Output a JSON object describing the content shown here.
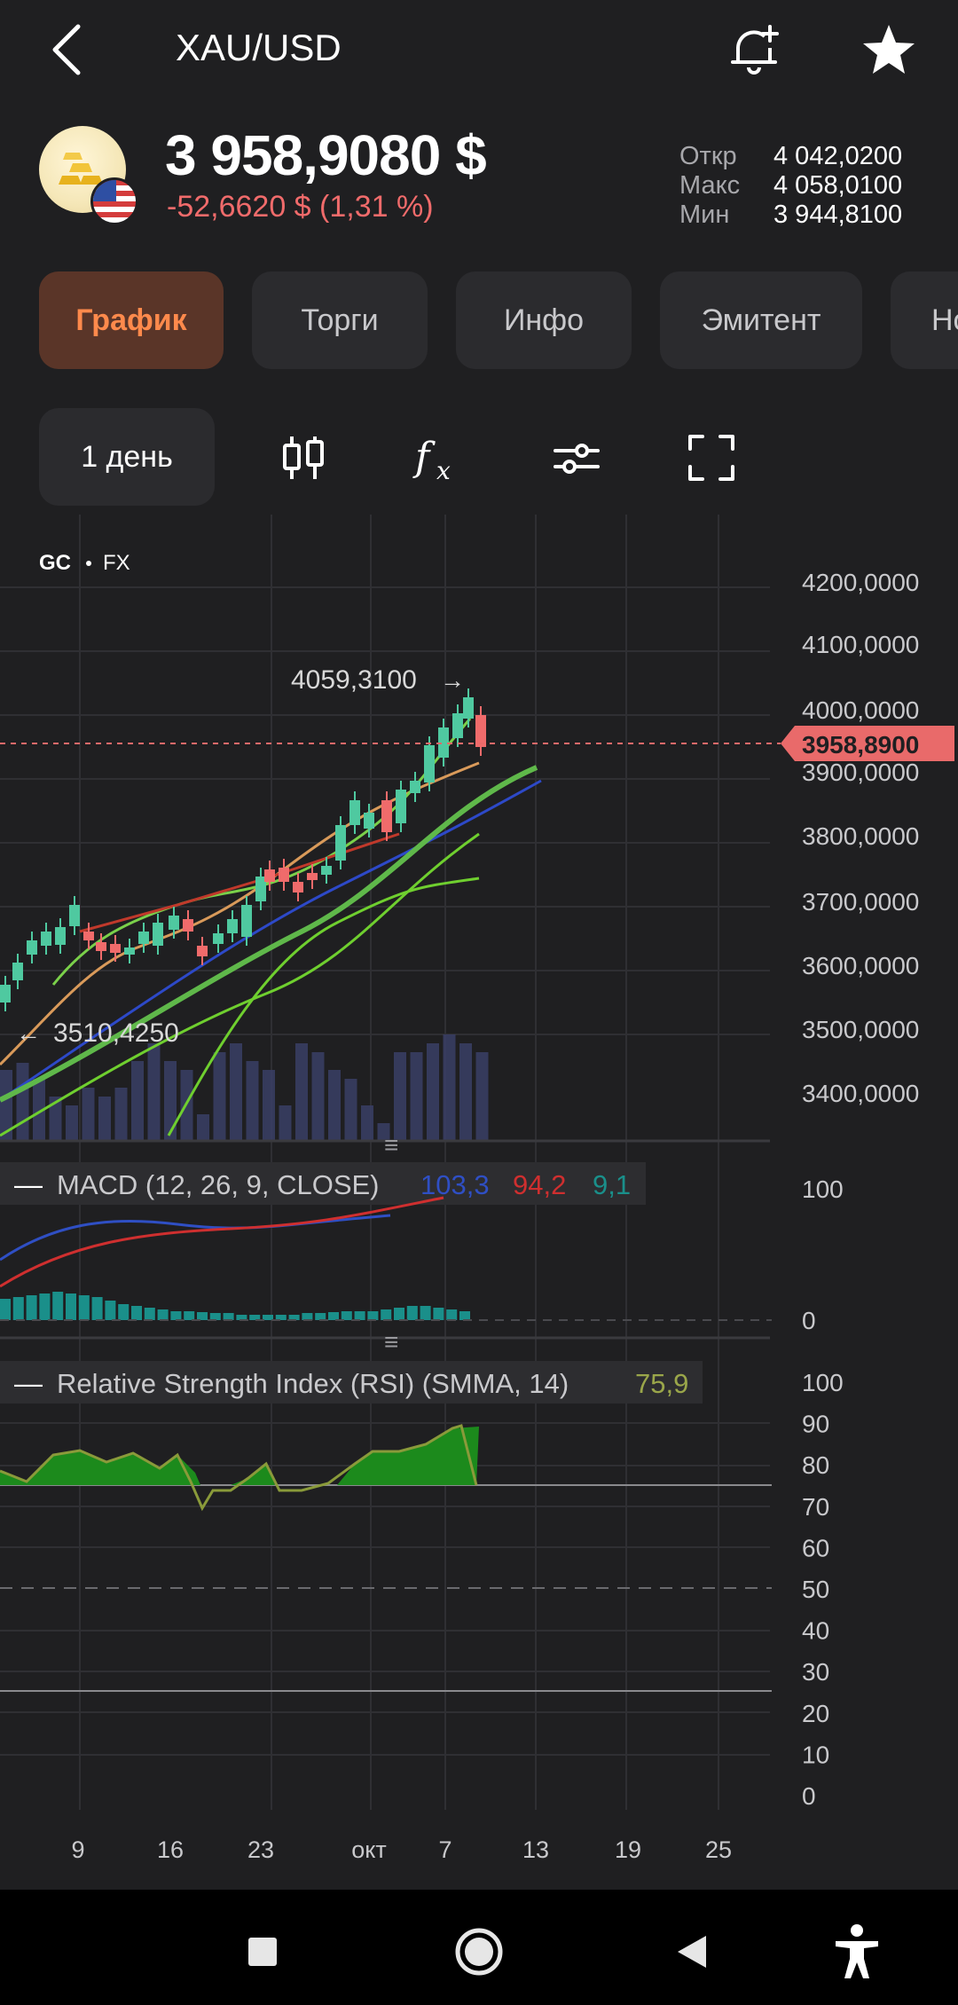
{
  "header": {
    "title": "XAU/USD",
    "icons": {
      "back": "back-arrow-icon",
      "alert": "bell-plus-icon",
      "favorite": "star-icon"
    }
  },
  "quote": {
    "price": "3 958,9080 $",
    "change": "-52,6620 $ (1,31 %)",
    "stats": [
      {
        "label": "Откр",
        "value": "4 042,0200"
      },
      {
        "label": "Макс",
        "value": "4 058,0100"
      },
      {
        "label": "Мин",
        "value": "3 944,8100"
      }
    ]
  },
  "tabs": [
    {
      "label": "График",
      "active": true
    },
    {
      "label": "Торги",
      "active": false
    },
    {
      "label": "Инфо",
      "active": false
    },
    {
      "label": "Эмитент",
      "active": false
    },
    {
      "label": "Но",
      "active": false
    }
  ],
  "toolbar": {
    "period": "1 день",
    "icons": [
      "candle-type-icon",
      "indicators-fx-icon",
      "settings-sliders-icon",
      "fullscreen-icon"
    ]
  },
  "chart": {
    "symbol": "GC",
    "source": "FX",
    "y_axis_labels": [
      "4200,0000",
      "4100,0000",
      "4000,0000",
      "3900,0000",
      "3800,0000",
      "3700,0000",
      "3600,0000",
      "3500,0000",
      "3400,0000"
    ],
    "current_price_label": "3958,8900",
    "high_marker": "4059,3100",
    "low_marker": "3510,4250",
    "x_axis_labels": [
      "9",
      "16",
      "23",
      "окт",
      "7",
      "13",
      "19",
      "25"
    ],
    "macd": {
      "title": "MACD (12, 26, 9, CLOSE)",
      "values": [
        "103,3",
        "94,2",
        "9,1"
      ],
      "colors": [
        "#2f4fc4",
        "#cf2f2f",
        "#1a8f8a"
      ],
      "axis_labels": [
        "100",
        "0"
      ]
    },
    "rsi": {
      "title": "Relative Strength Index (RSI) (SMMA, 14)",
      "value": "75,9",
      "value_color": "#9aa64a",
      "axis_labels": [
        "100",
        "90",
        "80",
        "70",
        "60",
        "50",
        "40",
        "30",
        "20",
        "10",
        "0"
      ]
    }
  },
  "colors": {
    "up": "#4fc9a0",
    "down": "#f06b6b",
    "accent": "#ff8a4c",
    "price_tag": "#e96a6a"
  },
  "navbar": {
    "icons": [
      "recent-apps-icon",
      "home-icon",
      "back-icon",
      "accessibility-icon"
    ]
  }
}
